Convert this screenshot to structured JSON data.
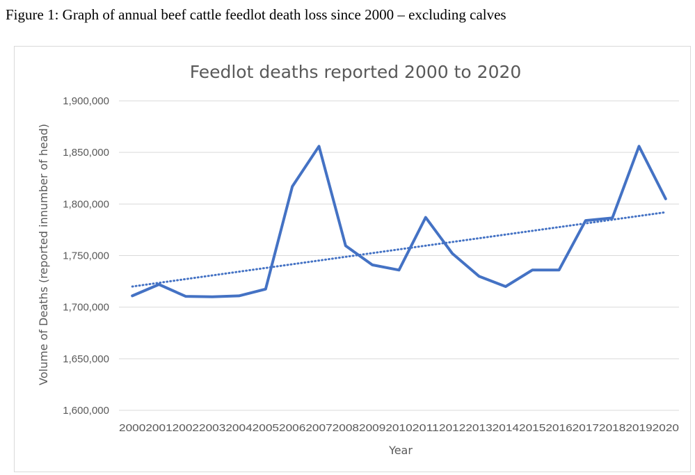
{
  "caption": "Figure 1: Graph of annual beef cattle feedlot death loss since 2000 – excluding calves",
  "chart_data": {
    "type": "line",
    "title": "Feedlot deaths reported 2000 to 2020",
    "xlabel": "Year",
    "ylabel": "Volume of Deaths (reported innumber of head)",
    "ylim": [
      1600000,
      1900000
    ],
    "yticks": [
      1600000,
      1650000,
      1700000,
      1750000,
      1800000,
      1850000,
      1900000
    ],
    "ytick_labels": [
      "1,600,000",
      "1,650,000",
      "1,700,000",
      "1,750,000",
      "1,800,000",
      "1,850,000",
      "1,900,000"
    ],
    "categories": [
      "2000",
      "2001",
      "2002",
      "2003",
      "2004",
      "2005",
      "2006",
      "2007",
      "2008",
      "2009",
      "2010",
      "2011",
      "2012",
      "2013",
      "2014",
      "2015",
      "2016",
      "2017",
      "2018",
      "2019",
      "2020"
    ],
    "series": [
      {
        "color": "#4472c4",
        "values": [
          1711000,
          1722000,
          1710500,
          1710000,
          1711000,
          1717500,
          1817000,
          1856000,
          1759500,
          1741000,
          1736000,
          1787000,
          1752000,
          1730000,
          1720000,
          1736000,
          1736000,
          1784000,
          1786500,
          1856000,
          1805000
        ]
      }
    ],
    "trendline": {
      "kind": "linear",
      "style": "dotted",
      "color": "#4472c4",
      "start": 1720000,
      "end": 1792000
    },
    "grid": true,
    "legend": "none"
  }
}
